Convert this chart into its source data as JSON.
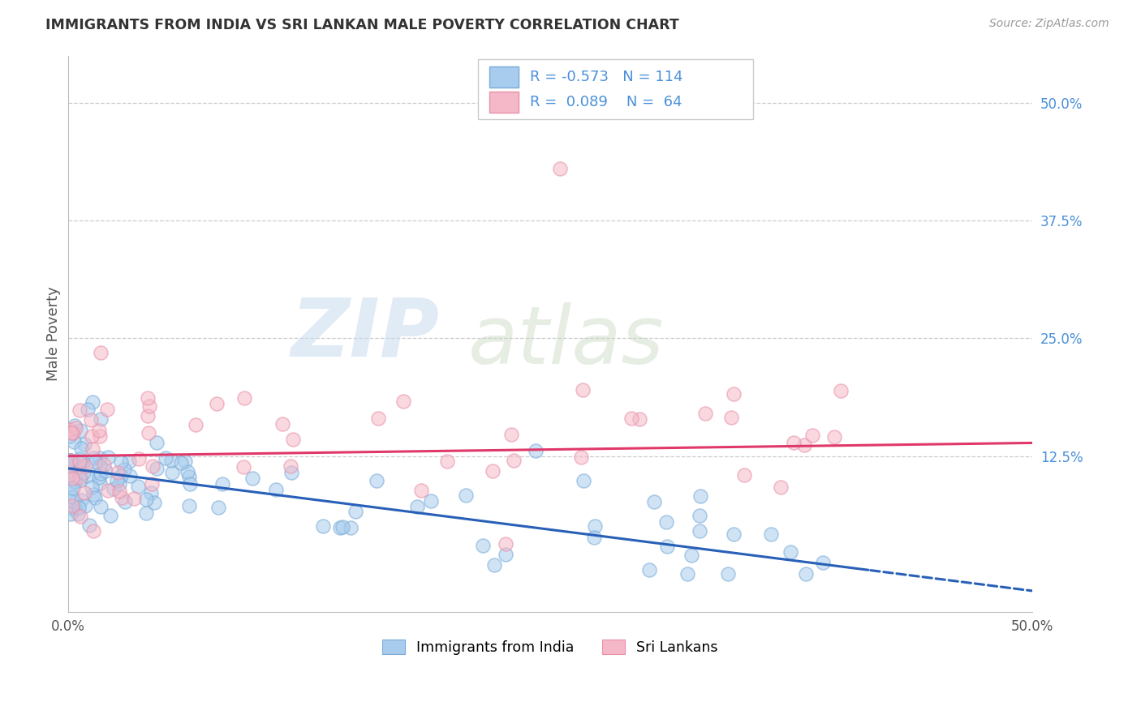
{
  "title": "IMMIGRANTS FROM INDIA VS SRI LANKAN MALE POVERTY CORRELATION CHART",
  "source": "Source: ZipAtlas.com",
  "ylabel": "Male Poverty",
  "india_R": "-0.573",
  "india_N": "114",
  "srilanka_R": "0.089",
  "srilanka_N": "64",
  "india_face_color": "#A8CCEE",
  "india_edge_color": "#7AAAD8",
  "srilanka_face_color": "#F5B8C8",
  "srilanka_edge_color": "#E890A8",
  "india_line_color": "#2860B8",
  "srilanka_line_color": "#E03868",
  "bg_color": "#FFFFFF",
  "grid_color": "#CCCCCC",
  "title_color": "#333333",
  "source_color": "#999999",
  "stat_text_color": "#4A90D9",
  "legend_label_india": "Immigrants from India",
  "legend_label_srilanka": "Sri Lankans",
  "right_ytick_vals": [
    0.125,
    0.25,
    0.375,
    0.5
  ],
  "right_ytick_labels": [
    "12.5%",
    "25.0%",
    "37.5%",
    "50.0%"
  ],
  "xlim": [
    0.0,
    0.5
  ],
  "ylim": [
    -0.04,
    0.55
  ],
  "india_intercept": 0.112,
  "india_slope": -0.26,
  "sl_intercept": 0.125,
  "sl_slope": 0.028
}
